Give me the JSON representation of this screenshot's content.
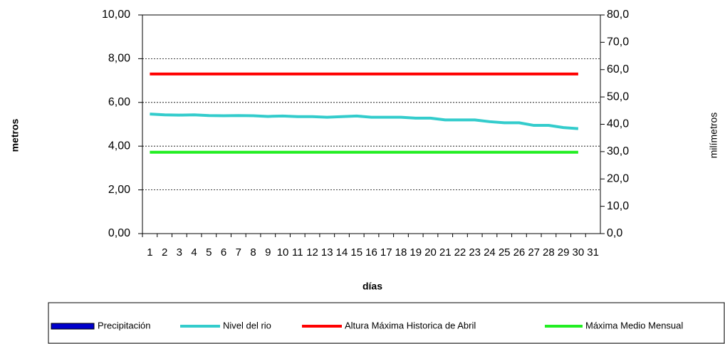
{
  "chart_data": {
    "type": "line",
    "x_label": "días",
    "y_label": "metros",
    "y2_label": "milímetros",
    "categories": [
      "1",
      "2",
      "3",
      "4",
      "5",
      "6",
      "7",
      "8",
      "9",
      "10",
      "11",
      "12",
      "13",
      "14",
      "15",
      "16",
      "17",
      "18",
      "19",
      "20",
      "21",
      "22",
      "23",
      "24",
      "25",
      "26",
      "27",
      "28",
      "29",
      "30",
      "31"
    ],
    "series": [
      {
        "name": "Precipitación",
        "type": "bar",
        "axis": "y2",
        "color": "#0000cc",
        "values": [
          0,
          0,
          0,
          0,
          0,
          0,
          0,
          0,
          0,
          0,
          0,
          0,
          0,
          0,
          0,
          0,
          0,
          0,
          0,
          0,
          0,
          0,
          0,
          0,
          0,
          0,
          0,
          0,
          0,
          0,
          0
        ]
      },
      {
        "name": "Nivel del rio",
        "type": "line",
        "color": "#33cccc",
        "values": [
          5.47,
          5.43,
          5.42,
          5.43,
          5.4,
          5.39,
          5.4,
          5.39,
          5.36,
          5.38,
          5.35,
          5.35,
          5.32,
          5.35,
          5.38,
          5.32,
          5.32,
          5.32,
          5.28,
          5.28,
          5.2,
          5.2,
          5.2,
          5.12,
          5.07,
          5.07,
          4.95,
          4.95,
          4.85,
          4.8,
          null
        ]
      },
      {
        "name": "Altura Máxima Historica de Abril",
        "type": "line",
        "color": "#ff0000",
        "values": [
          7.3,
          7.3,
          7.3,
          7.3,
          7.3,
          7.3,
          7.3,
          7.3,
          7.3,
          7.3,
          7.3,
          7.3,
          7.3,
          7.3,
          7.3,
          7.3,
          7.3,
          7.3,
          7.3,
          7.3,
          7.3,
          7.3,
          7.3,
          7.3,
          7.3,
          7.3,
          7.3,
          7.3,
          7.3,
          7.3,
          null
        ]
      },
      {
        "name": "Máxima Medio Mensual",
        "type": "line",
        "color": "#22ee22",
        "values": [
          3.72,
          3.72,
          3.72,
          3.72,
          3.72,
          3.72,
          3.72,
          3.72,
          3.72,
          3.72,
          3.72,
          3.72,
          3.72,
          3.72,
          3.72,
          3.72,
          3.72,
          3.72,
          3.72,
          3.72,
          3.72,
          3.72,
          3.72,
          3.72,
          3.72,
          3.72,
          3.72,
          3.72,
          3.72,
          3.72,
          null
        ]
      }
    ],
    "ylim": [
      0,
      10
    ],
    "yticks": [
      {
        "value": 0,
        "label": "0,00"
      },
      {
        "value": 2,
        "label": "2,00"
      },
      {
        "value": 4,
        "label": "4,00"
      },
      {
        "value": 6,
        "label": "6,00"
      },
      {
        "value": 8,
        "label": "8,00"
      },
      {
        "value": 10,
        "label": "10,00"
      }
    ],
    "y2lim": [
      0,
      80
    ],
    "y2ticks": [
      {
        "value": 0,
        "label": "0,0"
      },
      {
        "value": 10,
        "label": "10,0"
      },
      {
        "value": 20,
        "label": "20,0"
      },
      {
        "value": 30,
        "label": "30,0"
      },
      {
        "value": 40,
        "label": "40,0"
      },
      {
        "value": 50,
        "label": "50,0"
      },
      {
        "value": 60,
        "label": "60,0"
      },
      {
        "value": 70,
        "label": "70,0"
      },
      {
        "value": 80,
        "label": "80,0"
      }
    ],
    "grid": true,
    "legend": "bottom"
  }
}
